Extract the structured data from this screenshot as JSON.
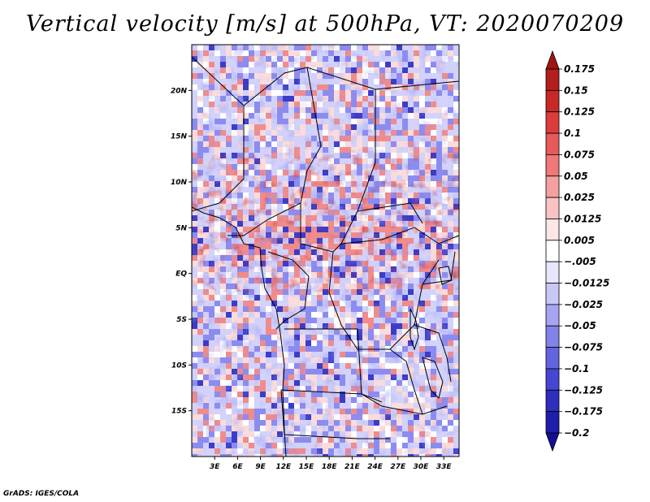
{
  "title": "Vertical velocity [m/s] at 500hPa, VT: 2020070209",
  "footer": "GrADS: IGES/COLA",
  "map": {
    "projection": "lat-lon",
    "lon_range": [
      0,
      35
    ],
    "lat_range": [
      -20,
      25
    ],
    "lat_ticks": [
      {
        "value": 20,
        "label": "20N"
      },
      {
        "value": 15,
        "label": "15N"
      },
      {
        "value": 10,
        "label": "10N"
      },
      {
        "value": 5,
        "label": "5N"
      },
      {
        "value": 0,
        "label": "EQ"
      },
      {
        "value": -5,
        "label": "5S"
      },
      {
        "value": -10,
        "label": "10S"
      },
      {
        "value": -15,
        "label": "15S"
      }
    ],
    "lon_ticks": [
      {
        "value": 3,
        "label": "3E"
      },
      {
        "value": 6,
        "label": "6E"
      },
      {
        "value": 9,
        "label": "9E"
      },
      {
        "value": 12,
        "label": "12E"
      },
      {
        "value": 15,
        "label": "15E"
      },
      {
        "value": 18,
        "label": "18E"
      },
      {
        "value": 21,
        "label": "21E"
      },
      {
        "value": 24,
        "label": "24E"
      },
      {
        "value": 27,
        "label": "27E"
      },
      {
        "value": 30,
        "label": "30E"
      },
      {
        "value": 33,
        "label": "33E"
      }
    ],
    "field_colors": {
      "strong_up": "#c82828",
      "up": "#f08c8c",
      "weak_up": "#fadcdc",
      "neutral": "#ffffff",
      "weak_down": "#d2d2fa",
      "down": "#8c8cf0",
      "strong_down": "#3c3cc8"
    }
  },
  "colorbar": {
    "labels": [
      "0.175",
      "0.15",
      "0.125",
      "0.1",
      "0.075",
      "0.05",
      "0.025",
      "0.0125",
      "0.005",
      "−.005",
      "−0.0125",
      "−0.025",
      "−0.05",
      "−0.075",
      "−0.1",
      "−0.125",
      "−0.175",
      "−0.2"
    ],
    "colors": [
      "#a01414",
      "#b41e1e",
      "#c82828",
      "#dc3c3c",
      "#e65a5a",
      "#f07878",
      "#f5a0a0",
      "#fac3c3",
      "#fde6e6",
      "#ffffff",
      "#e6e6fc",
      "#c8c8f7",
      "#a5a5f2",
      "#8282eb",
      "#6464e1",
      "#4646d2",
      "#2d2dbe",
      "#1e1eaa",
      "#140f96"
    ]
  }
}
